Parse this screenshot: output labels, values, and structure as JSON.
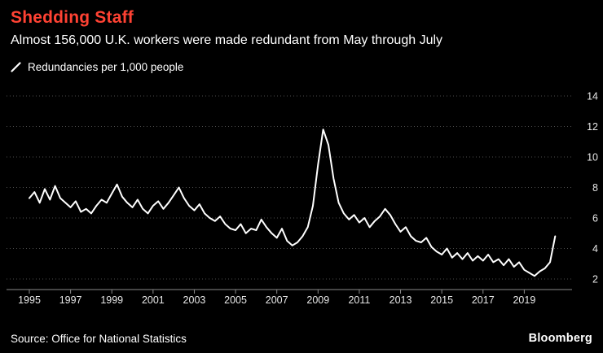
{
  "header": {
    "title": "Shedding Staff",
    "subtitle": "Almost 156,000 U.K. workers were made redundant from May through July"
  },
  "legend": {
    "label": "Redundancies per 1,000 people"
  },
  "footer": {
    "source": "Source: Office for National Statistics",
    "brand": "Bloomberg"
  },
  "colors": {
    "background": "#000000",
    "title": "#ff4233",
    "text": "#ffffff",
    "line": "#ffffff",
    "grid": "#4c4c4c",
    "axis": "#8a8a8a",
    "tick_label": "#e8e8e8"
  },
  "chart_data": {
    "type": "line",
    "title": "Shedding Staff",
    "subtitle": "Almost 156,000 U.K. workers were made redundant from May through July",
    "series_name": "Redundancies per 1,000 people",
    "source": "Office for National Statistics",
    "grid": "dotted-horizontal",
    "legend_position": "top-left",
    "y_axis_side": "right",
    "xlim": [
      1995,
      2021
    ],
    "ylim": [
      2,
      14
    ],
    "x_ticks": [
      1995,
      1997,
      1999,
      2001,
      2003,
      2005,
      2007,
      2009,
      2011,
      2013,
      2015,
      2017,
      2019
    ],
    "y_ticks": [
      2,
      4,
      6,
      8,
      10,
      12,
      14
    ],
    "x": [
      1995,
      1995.25,
      1995.5,
      1995.75,
      1996,
      1996.25,
      1996.5,
      1996.75,
      1997,
      1997.25,
      1997.5,
      1997.75,
      1998,
      1998.25,
      1998.5,
      1998.75,
      1999,
      1999.25,
      1999.5,
      1999.75,
      2000,
      2000.25,
      2000.5,
      2000.75,
      2001,
      2001.25,
      2001.5,
      2001.75,
      2002,
      2002.25,
      2002.5,
      2002.75,
      2003,
      2003.25,
      2003.5,
      2003.75,
      2004,
      2004.25,
      2004.5,
      2004.75,
      2005,
      2005.25,
      2005.5,
      2005.75,
      2006,
      2006.25,
      2006.5,
      2006.75,
      2007,
      2007.25,
      2007.5,
      2007.75,
      2008,
      2008.25,
      2008.5,
      2008.75,
      2009,
      2009.25,
      2009.5,
      2009.75,
      2010,
      2010.25,
      2010.5,
      2010.75,
      2011,
      2011.25,
      2011.5,
      2011.75,
      2012,
      2012.25,
      2012.5,
      2012.75,
      2013,
      2013.25,
      2013.5,
      2013.75,
      2014,
      2014.25,
      2014.5,
      2014.75,
      2015,
      2015.25,
      2015.5,
      2015.75,
      2016,
      2016.25,
      2016.5,
      2016.75,
      2017,
      2017.25,
      2017.5,
      2017.75,
      2018,
      2018.25,
      2018.5,
      2018.75,
      2019,
      2019.25,
      2019.5,
      2019.75,
      2020,
      2020.25,
      2020.5
    ],
    "y": [
      7.3,
      7.7,
      7.0,
      7.9,
      7.2,
      8.1,
      7.3,
      7.0,
      6.7,
      7.1,
      6.4,
      6.6,
      6.3,
      6.8,
      7.2,
      7.0,
      7.6,
      8.2,
      7.4,
      7.0,
      6.7,
      7.2,
      6.6,
      6.3,
      6.8,
      7.1,
      6.6,
      7.0,
      7.5,
      8.0,
      7.3,
      6.8,
      6.5,
      6.9,
      6.3,
      6.0,
      5.8,
      6.1,
      5.6,
      5.3,
      5.2,
      5.6,
      5.0,
      5.3,
      5.2,
      5.9,
      5.4,
      5.0,
      4.7,
      5.3,
      4.5,
      4.2,
      4.4,
      4.8,
      5.4,
      6.8,
      9.5,
      11.8,
      10.8,
      8.6,
      7.0,
      6.3,
      5.9,
      6.2,
      5.7,
      6.0,
      5.4,
      5.8,
      6.1,
      6.6,
      6.2,
      5.6,
      5.1,
      5.4,
      4.8,
      4.5,
      4.4,
      4.7,
      4.1,
      3.8,
      3.6,
      4.0,
      3.4,
      3.7,
      3.3,
      3.7,
      3.2,
      3.5,
      3.2,
      3.6,
      3.1,
      3.3,
      2.9,
      3.3,
      2.8,
      3.1,
      2.6,
      2.4,
      2.2,
      2.5,
      2.7,
      3.1,
      4.8
    ]
  }
}
